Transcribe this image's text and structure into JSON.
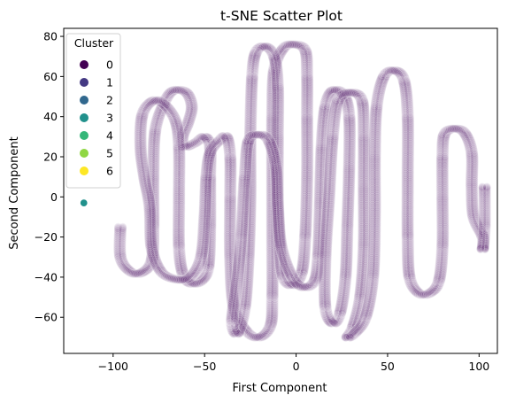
{
  "chart_data": {
    "type": "scatter",
    "title": "t-SNE Scatter Plot",
    "xlabel": "First Component",
    "ylabel": "Second Component",
    "xlim": [
      -127,
      110
    ],
    "ylim": [
      -78,
      84
    ],
    "x_ticks": [
      -100,
      -50,
      0,
      50,
      100
    ],
    "y_ticks": [
      -60,
      -40,
      -20,
      0,
      20,
      40,
      60,
      80
    ],
    "x_tick_labels": [
      "−100",
      "−50",
      "0",
      "50",
      "100"
    ],
    "y_tick_labels": [
      "−60",
      "−40",
      "−20",
      "0",
      "20",
      "40",
      "60",
      "80"
    ],
    "grid": false,
    "legend": {
      "title": "Cluster",
      "position": "top-left",
      "entries": [
        {
          "label": "0",
          "color": "#440154"
        },
        {
          "label": "1",
          "color": "#443983"
        },
        {
          "label": "2",
          "color": "#31688e"
        },
        {
          "label": "3",
          "color": "#21918c"
        },
        {
          "label": "4",
          "color": "#35b779"
        },
        {
          "label": "5",
          "color": "#90d743"
        },
        {
          "label": "6",
          "color": "#fde725"
        }
      ]
    },
    "dominant_cluster": "0",
    "dominant_cluster_opacity": 0.08,
    "series": [
      {
        "cluster": "0",
        "color": "#440154",
        "opacity": 0.08,
        "path": [
          [
            -96,
            -15
          ],
          [
            -96,
            -30
          ],
          [
            -91,
            -37
          ],
          [
            -85,
            -38
          ],
          [
            -79,
            -32
          ],
          [
            -78,
            -15
          ],
          [
            -78,
            10
          ],
          [
            -77,
            33
          ],
          [
            -72,
            47
          ],
          [
            -67,
            53
          ],
          [
            -60,
            52
          ],
          [
            -57,
            45
          ],
          [
            -59,
            37
          ],
          [
            -62,
            30
          ],
          [
            -61,
            25
          ],
          [
            -55,
            27
          ],
          [
            -50,
            30
          ],
          [
            -47,
            25
          ],
          [
            -47,
            10
          ],
          [
            -47,
            -15
          ],
          [
            -48,
            -35
          ],
          [
            -52,
            -42
          ],
          [
            -58,
            -43
          ],
          [
            -62,
            -38
          ],
          [
            -64,
            -25
          ],
          [
            -64,
            0
          ],
          [
            -64,
            25
          ],
          [
            -66,
            38
          ],
          [
            -72,
            46
          ],
          [
            -78,
            48
          ],
          [
            -84,
            41
          ],
          [
            -85,
            25
          ],
          [
            -83,
            10
          ],
          [
            -80,
            -5
          ],
          [
            -79,
            -25
          ],
          [
            -74,
            -37
          ],
          [
            -66,
            -41
          ],
          [
            -58,
            -40
          ],
          [
            -52,
            -30
          ],
          [
            -50,
            -10
          ],
          [
            -49,
            10
          ],
          [
            -47,
            22
          ],
          [
            -42,
            28
          ],
          [
            -38,
            30
          ],
          [
            -36,
            20
          ],
          [
            -36,
            0
          ],
          [
            -36,
            -30
          ],
          [
            -34,
            -55
          ],
          [
            -27,
            -67
          ],
          [
            -20,
            -70
          ],
          [
            -14,
            -64
          ],
          [
            -13,
            -50
          ],
          [
            -13,
            -20
          ],
          [
            -13,
            10
          ],
          [
            -13,
            40
          ],
          [
            -12,
            63
          ],
          [
            -7,
            74
          ],
          [
            -1,
            76
          ],
          [
            5,
            73
          ],
          [
            6,
            60
          ],
          [
            6,
            40
          ],
          [
            6,
            10
          ],
          [
            5,
            -20
          ],
          [
            3,
            -38
          ],
          [
            -2,
            -44
          ],
          [
            -7,
            -40
          ],
          [
            -9,
            -25
          ],
          [
            -10,
            0
          ],
          [
            -10,
            30
          ],
          [
            -10,
            55
          ],
          [
            -12,
            70
          ],
          [
            -17,
            75
          ],
          [
            -22,
            72
          ],
          [
            -24,
            60
          ],
          [
            -25,
            30
          ],
          [
            -25,
            0
          ],
          [
            -26,
            -30
          ],
          [
            -28,
            -55
          ],
          [
            -32,
            -68
          ],
          [
            -35,
            -62
          ],
          [
            -32,
            -40
          ],
          [
            -30,
            -20
          ],
          [
            -28,
            10
          ],
          [
            -26,
            28
          ],
          [
            -20,
            31
          ],
          [
            -15,
            28
          ],
          [
            -11,
            15
          ],
          [
            -10,
            -5
          ],
          [
            -8,
            -25
          ],
          [
            -2,
            -40
          ],
          [
            4,
            -45
          ],
          [
            10,
            -42
          ],
          [
            12,
            -30
          ],
          [
            13,
            -5
          ],
          [
            14,
            25
          ],
          [
            16,
            45
          ],
          [
            20,
            53
          ],
          [
            26,
            51
          ],
          [
            29,
            40
          ],
          [
            29,
            15
          ],
          [
            28,
            -15
          ],
          [
            27,
            -40
          ],
          [
            24,
            -58
          ],
          [
            20,
            -63
          ],
          [
            16,
            -55
          ],
          [
            16,
            -30
          ],
          [
            18,
            0
          ],
          [
            20,
            30
          ],
          [
            23,
            48
          ],
          [
            30,
            52
          ],
          [
            36,
            48
          ],
          [
            37,
            30
          ],
          [
            37,
            5
          ],
          [
            37,
            -25
          ],
          [
            35,
            -50
          ],
          [
            31,
            -65
          ],
          [
            28,
            -70
          ],
          [
            32,
            -68
          ],
          [
            38,
            -60
          ],
          [
            42,
            -40
          ],
          [
            43,
            -10
          ],
          [
            43,
            20
          ],
          [
            44,
            45
          ],
          [
            48,
            60
          ],
          [
            54,
            63
          ],
          [
            59,
            58
          ],
          [
            61,
            40
          ],
          [
            61,
            10
          ],
          [
            61,
            -20
          ],
          [
            62,
            -40
          ],
          [
            67,
            -48
          ],
          [
            73,
            -48
          ],
          [
            78,
            -42
          ],
          [
            80,
            -25
          ],
          [
            80,
            0
          ],
          [
            80,
            20
          ],
          [
            81,
            31
          ],
          [
            86,
            34
          ],
          [
            92,
            32
          ],
          [
            96,
            22
          ],
          [
            96,
            5
          ],
          [
            97,
            -10
          ],
          [
            102,
            -20
          ],
          [
            102,
            -26
          ],
          [
            103,
            -15
          ],
          [
            103,
            5
          ]
        ]
      },
      {
        "cluster": "3",
        "color": "#21918c",
        "opacity": 1,
        "points": [
          [
            -116,
            -3
          ]
        ]
      }
    ]
  }
}
